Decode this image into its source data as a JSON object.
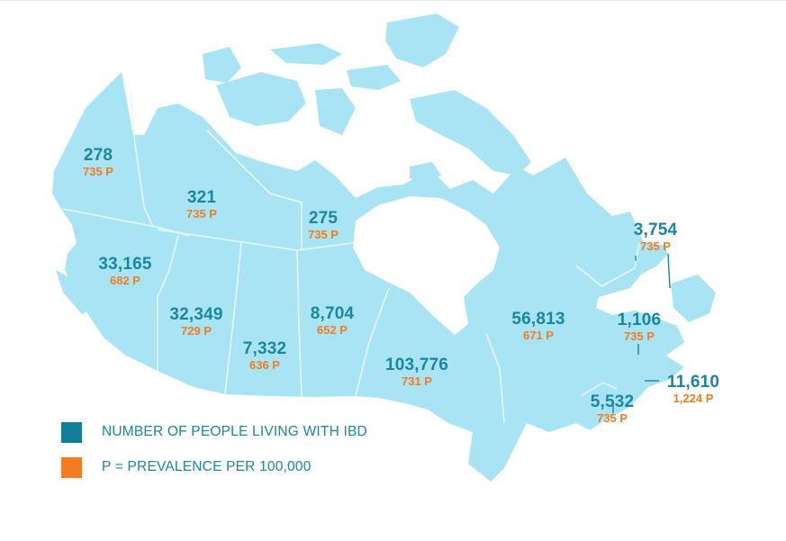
{
  "colors": {
    "land": "#a9e4f4",
    "border": "#e6f7fc",
    "count": "#1a86a0",
    "prevalence": "#f47c20",
    "legend_count_swatch": "#117f97",
    "legend_prevalence_swatch": "#f47c20"
  },
  "regions": [
    {
      "id": "yukon",
      "count": "278",
      "prevalence": "735 P"
    },
    {
      "id": "northwest-territories",
      "count": "321",
      "prevalence": "735 P"
    },
    {
      "id": "nunavut",
      "count": "275",
      "prevalence": "735 P"
    },
    {
      "id": "british-columbia",
      "count": "33,165",
      "prevalence": "682 P"
    },
    {
      "id": "alberta",
      "count": "32,349",
      "prevalence": "729 P"
    },
    {
      "id": "saskatchewan",
      "count": "7,332",
      "prevalence": "636 P"
    },
    {
      "id": "manitoba",
      "count": "8,704",
      "prevalence": "652 P"
    },
    {
      "id": "ontario",
      "count": "103,776",
      "prevalence": "731 P"
    },
    {
      "id": "quebec",
      "count": "56,813",
      "prevalence": "671 P"
    },
    {
      "id": "newfoundland-and-labrador",
      "count": "3,754",
      "prevalence": "735 P"
    },
    {
      "id": "prince-edward-island",
      "count": "1,106",
      "prevalence": "735 P"
    },
    {
      "id": "nova-scotia",
      "count": "11,610",
      "prevalence": "1,224 P"
    },
    {
      "id": "new-brunswick",
      "count": "5,532",
      "prevalence": "735 P"
    }
  ],
  "legend": {
    "count_label": "NUMBER OF PEOPLE LIVING WITH IBD",
    "prevalence_label": "P = PREVALENCE PER 100,000"
  }
}
